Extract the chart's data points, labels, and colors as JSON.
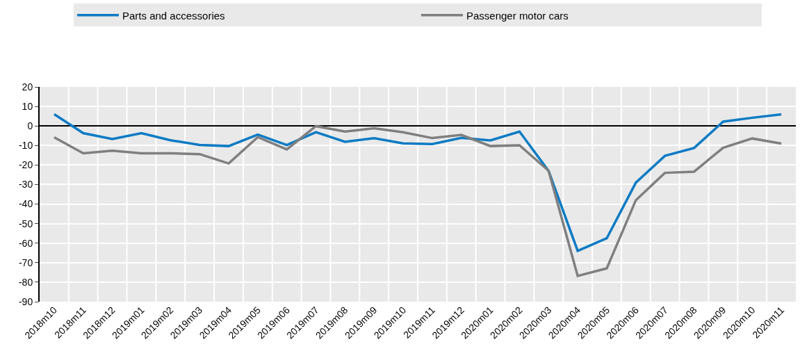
{
  "chart_data": {
    "type": "line",
    "categories": [
      "2018m10",
      "2018m11",
      "2018m12",
      "2019m01",
      "2019m02",
      "2019m03",
      "2019m04",
      "2019m05",
      "2019m06",
      "2019m07",
      "2019m08",
      "2019m09",
      "2019m10",
      "2019m11",
      "2019m12",
      "2020m01",
      "2020m02",
      "2020m03",
      "2020m04",
      "2020m05",
      "2020m06",
      "2020m07",
      "2020m08",
      "2020m09",
      "2020m10",
      "2020m11"
    ],
    "series": [
      {
        "name": "Parts and accessories",
        "color": "#0c7bc4",
        "values": [
          6,
          -3.7,
          -6.7,
          -3.7,
          -7.3,
          -9.7,
          -10.3,
          -4.4,
          -9.8,
          -3.2,
          -8.1,
          -6.3,
          -8.9,
          -9.3,
          -6.1,
          -7.4,
          -2.9,
          -23,
          -64,
          -57.5,
          -29,
          -15.3,
          -11.3,
          2.2,
          4.2,
          5.9
        ]
      },
      {
        "name": "Passenger motor cars",
        "color": "#7f7f7f",
        "values": [
          -5.8,
          -14,
          -12.7,
          -14,
          -14,
          -14.4,
          -19.2,
          -5.7,
          -12,
          -0.1,
          -2.9,
          -1.2,
          -3.2,
          -6.2,
          -4.6,
          -10.3,
          -9.9,
          -23,
          -76.8,
          -72.9,
          -38,
          -24,
          -23.4,
          -11.2,
          -6.4,
          -9
        ]
      }
    ],
    "ylim": [
      -90,
      20
    ],
    "yticks": [
      -90,
      -80,
      -70,
      -60,
      -50,
      -40,
      -30,
      -20,
      -10,
      0,
      10,
      20
    ],
    "grid": true,
    "legend": "top",
    "marker": "none",
    "line_style": "solid"
  }
}
